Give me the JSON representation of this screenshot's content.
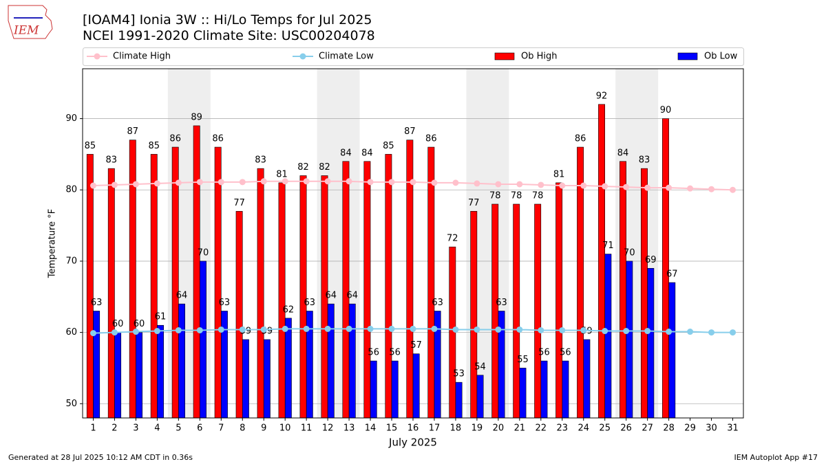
{
  "chart_data": {
    "type": "bar",
    "title": "[IOAM4] Ionia 3W :: Hi/Lo Temps for Jul 2025",
    "subtitle": "NCEI 1991-2020 Climate Site: USC00204078",
    "logo_text": "IEM",
    "y_label": "Temperature °F",
    "x_label": "July 2025",
    "footer_left": "Generated at 28 Jul 2025 10:12 AM CDT in 0.36s",
    "footer_right": "IEM Autoplot App #17",
    "x": [
      1,
      2,
      3,
      4,
      5,
      6,
      7,
      8,
      9,
      10,
      11,
      12,
      13,
      14,
      15,
      16,
      17,
      18,
      19,
      20,
      21,
      22,
      23,
      24,
      25,
      26,
      27,
      28,
      29,
      30,
      31
    ],
    "xlim": [
      0.5,
      31.5
    ],
    "xticks": [
      1,
      2,
      3,
      4,
      5,
      6,
      7,
      8,
      9,
      10,
      11,
      12,
      13,
      14,
      15,
      16,
      17,
      18,
      19,
      20,
      21,
      22,
      23,
      24,
      25,
      26,
      27,
      28,
      29,
      30,
      31
    ],
    "ylim": [
      48,
      97
    ],
    "yticks": [
      50,
      60,
      70,
      80,
      90
    ],
    "grid": true,
    "legend": "top",
    "shaded_ranges": [
      [
        4.5,
        6.5
      ],
      [
        11.5,
        13.5
      ],
      [
        18.5,
        20.5
      ],
      [
        25.5,
        27.5
      ]
    ],
    "series": [
      {
        "name": "Climate High",
        "kind": "line",
        "color": "#ffc0cb",
        "values": [
          80.6,
          80.7,
          80.8,
          80.9,
          81.0,
          81.1,
          81.1,
          81.1,
          81.2,
          81.2,
          81.2,
          81.2,
          81.2,
          81.1,
          81.1,
          81.1,
          81.0,
          81.0,
          80.9,
          80.8,
          80.8,
          80.7,
          80.6,
          80.6,
          80.5,
          80.4,
          80.3,
          80.3,
          80.2,
          80.1,
          80.0
        ]
      },
      {
        "name": "Climate Low",
        "kind": "line",
        "color": "#87ceeb",
        "values": [
          59.9,
          60.0,
          60.1,
          60.2,
          60.3,
          60.3,
          60.4,
          60.4,
          60.4,
          60.5,
          60.5,
          60.5,
          60.5,
          60.5,
          60.5,
          60.5,
          60.5,
          60.4,
          60.4,
          60.4,
          60.4,
          60.3,
          60.3,
          60.3,
          60.2,
          60.2,
          60.2,
          60.1,
          60.1,
          60.0,
          60.0
        ]
      },
      {
        "name": "Ob High",
        "kind": "bar",
        "color": "#ff0000",
        "values": [
          85,
          83,
          87,
          85,
          86,
          89,
          86,
          77,
          83,
          81,
          82,
          82,
          84,
          84,
          85,
          87,
          86,
          72,
          77,
          78,
          78,
          78,
          81,
          86,
          92,
          84,
          83,
          90,
          null,
          null,
          null
        ]
      },
      {
        "name": "Ob Low",
        "kind": "bar",
        "color": "#0000ff",
        "values": [
          63,
          60,
          60,
          61,
          64,
          70,
          63,
          59,
          59,
          62,
          63,
          64,
          64,
          56,
          56,
          57,
          63,
          53,
          54,
          63,
          55,
          56,
          56,
          59,
          71,
          70,
          69,
          67,
          null,
          null,
          null
        ]
      }
    ]
  }
}
